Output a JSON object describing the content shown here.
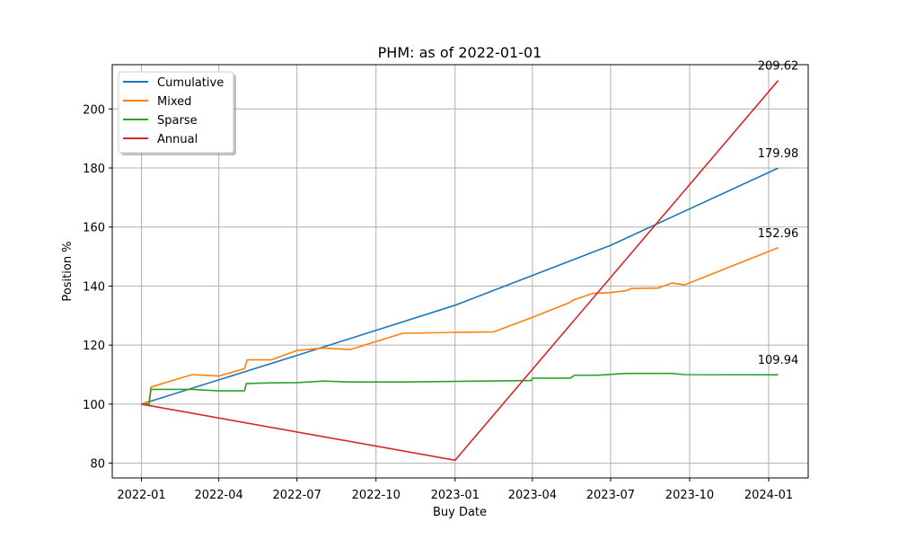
{
  "chart_data": {
    "type": "line",
    "title": "PHM: as of 2022-01-01",
    "xlabel": "Buy Date",
    "ylabel": "Position %",
    "xlim": [
      "2021-11-28",
      "2024-02-16"
    ],
    "ylim": [
      75,
      215
    ],
    "grid": true,
    "legend_position": "top-left",
    "x_ticks": [
      "2022-01",
      "2022-04",
      "2022-07",
      "2022-10",
      "2023-01",
      "2023-04",
      "2023-07",
      "2023-10",
      "2024-01"
    ],
    "y_ticks": [
      80,
      100,
      120,
      140,
      160,
      180,
      200
    ],
    "series": [
      {
        "name": "Cumulative",
        "color": "#1f77b4",
        "points": [
          [
            "2022-01-01",
            100
          ],
          [
            "2022-07-01",
            116.5
          ],
          [
            "2023-01-01",
            133.5
          ],
          [
            "2023-07-01",
            153.8
          ],
          [
            "2024-01-12",
            179.98
          ]
        ],
        "end_label": "179.98"
      },
      {
        "name": "Mixed",
        "color": "#ff7f0e",
        "points": [
          [
            "2022-01-01",
            100
          ],
          [
            "2022-01-10",
            101
          ],
          [
            "2022-01-12",
            105.8
          ],
          [
            "2022-03-01",
            110
          ],
          [
            "2022-04-01",
            109.5
          ],
          [
            "2022-05-01",
            112
          ],
          [
            "2022-05-04",
            115
          ],
          [
            "2022-06-01",
            115
          ],
          [
            "2022-07-01",
            118.2
          ],
          [
            "2022-08-01",
            119
          ],
          [
            "2022-09-01",
            118.5
          ],
          [
            "2022-11-01",
            124
          ],
          [
            "2023-01-01",
            124.3
          ],
          [
            "2023-02-15",
            124.5
          ],
          [
            "2023-03-31",
            129.3
          ],
          [
            "2023-05-15",
            134.5
          ],
          [
            "2023-05-18",
            135.2
          ],
          [
            "2023-06-10",
            137.5
          ],
          [
            "2023-07-01",
            137.8
          ],
          [
            "2023-07-20",
            138.5
          ],
          [
            "2023-07-25",
            139.2
          ],
          [
            "2023-08-25",
            139.3
          ],
          [
            "2023-09-10",
            141
          ],
          [
            "2023-09-25",
            140.4
          ],
          [
            "2024-01-12",
            152.96
          ]
        ],
        "end_label": "152.96"
      },
      {
        "name": "Sparse",
        "color": "#2ca02c",
        "points": [
          [
            "2022-01-01",
            100
          ],
          [
            "2022-01-10",
            100
          ],
          [
            "2022-01-12",
            105
          ],
          [
            "2022-03-01",
            105
          ],
          [
            "2022-04-01",
            104.5
          ],
          [
            "2022-05-01",
            104.5
          ],
          [
            "2022-05-03",
            107
          ],
          [
            "2022-06-01",
            107.2
          ],
          [
            "2022-07-01",
            107.3
          ],
          [
            "2022-08-01",
            107.8
          ],
          [
            "2022-09-01",
            107.5
          ],
          [
            "2022-11-01",
            107.5
          ],
          [
            "2023-01-01",
            107.7
          ],
          [
            "2023-03-31",
            108
          ],
          [
            "2023-04-01",
            108.8
          ],
          [
            "2023-05-15",
            108.8
          ],
          [
            "2023-05-20",
            109.8
          ],
          [
            "2023-06-15",
            109.8
          ],
          [
            "2023-07-20",
            110.4
          ],
          [
            "2023-09-10",
            110.4
          ],
          [
            "2023-09-25",
            110
          ],
          [
            "2024-01-12",
            109.94
          ]
        ],
        "end_label": "109.94"
      },
      {
        "name": "Annual",
        "color": "#d62728",
        "points": [
          [
            "2022-01-01",
            100
          ],
          [
            "2023-01-01",
            81
          ],
          [
            "2024-01-12",
            209.62
          ]
        ],
        "end_label": "209.62"
      }
    ]
  }
}
